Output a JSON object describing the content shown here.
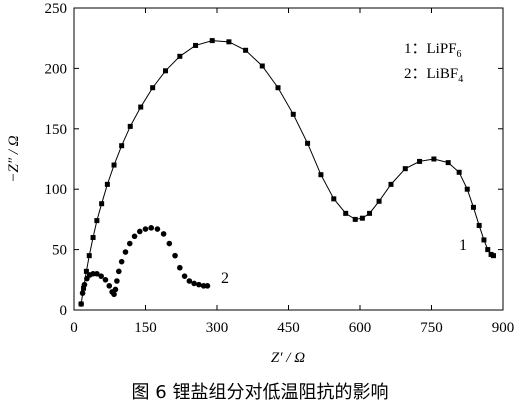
{
  "caption": "图 6 锂盐组分对低温阻抗的影响",
  "chart_data": {
    "type": "scatter",
    "xlabel": "Z′ / Ω",
    "ylabel": "−Z″ / Ω",
    "xlim": [
      0,
      900
    ],
    "ylim": [
      0,
      250
    ],
    "x_ticks": [
      "0",
      "150",
      "300",
      "450",
      "600",
      "750",
      "900"
    ],
    "y_ticks": [
      "0",
      "50",
      "100",
      "150",
      "200",
      "250"
    ],
    "legend": [
      {
        "marker": "1：",
        "label": "LiPF",
        "sub": "6"
      },
      {
        "marker": "2：",
        "label": "LiBF",
        "sub": "4"
      }
    ],
    "series": [
      {
        "name": "1",
        "marker": "square",
        "line": true,
        "x": [
          15,
          20,
          26,
          32,
          40,
          48,
          58,
          70,
          84,
          100,
          118,
          140,
          165,
          192,
          222,
          255,
          290,
          325,
          360,
          395,
          428,
          460,
          490,
          518,
          545,
          570,
          590,
          605,
          620,
          640,
          665,
          695,
          725,
          755,
          785,
          808,
          825,
          838,
          850,
          860,
          868,
          875,
          880
        ],
        "y": [
          5,
          18,
          32,
          45,
          60,
          74,
          88,
          104,
          120,
          136,
          152,
          168,
          184,
          198,
          210,
          219,
          223,
          222,
          215,
          202,
          184,
          162,
          138,
          112,
          92,
          80,
          75,
          76,
          80,
          90,
          104,
          117,
          123,
          125,
          122,
          114,
          100,
          85,
          70,
          58,
          50,
          46,
          45
        ]
      },
      {
        "name": "2",
        "marker": "circle",
        "line": false,
        "x": [
          15,
          18,
          22,
          27,
          33,
          40,
          48,
          57,
          66,
          74,
          80,
          84,
          87,
          90,
          94,
          100,
          108,
          117,
          127,
          138,
          150,
          162,
          175,
          188,
          200,
          212,
          222,
          232,
          242,
          252,
          262,
          272,
          280
        ],
        "y": [
          5,
          14,
          21,
          26,
          29,
          30,
          30,
          28,
          25,
          20,
          15,
          13,
          17,
          24,
          32,
          40,
          48,
          55,
          61,
          65,
          67,
          68,
          67,
          63,
          55,
          45,
          35,
          28,
          24,
          22,
          21,
          20,
          20
        ]
      }
    ]
  }
}
